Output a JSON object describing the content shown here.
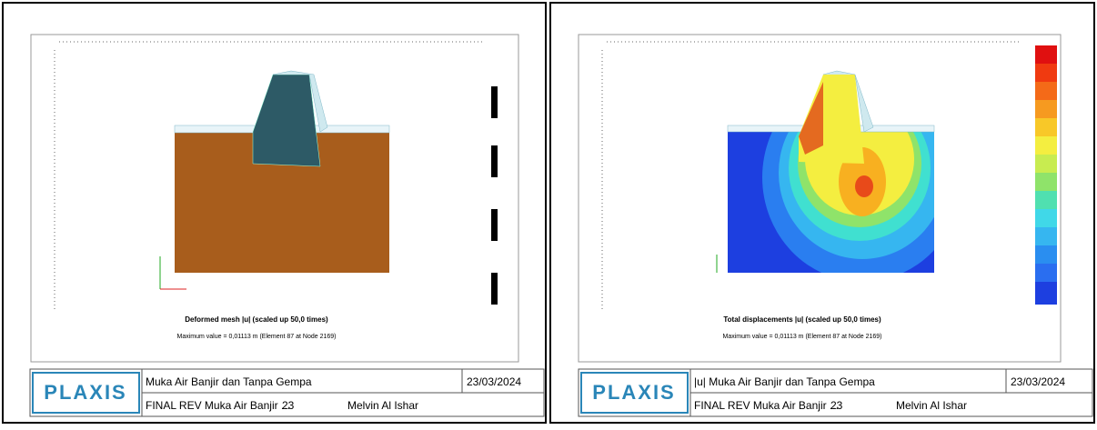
{
  "panels": [
    {
      "caption": "Deformed mesh |u| (scaled up 50,0 times)",
      "max_value": "Maximum value = 0,01113 m (Element 87 at Node 2169)",
      "title_block": {
        "logo": "PLAXIS",
        "project": "Muka Air Banjir dan Tanpa Gempa",
        "date": "23/03/2024",
        "file": "FINAL REV Muka Air Banjir ...",
        "step": "23",
        "user": "Melvin Al Ishar"
      }
    },
    {
      "caption": "Total displacements |u| (scaled up 50,0 times)",
      "max_value": "Maximum value = 0,01113 m (Element 87 at Node 2169)",
      "title_block": {
        "logo": "PLAXIS",
        "project": "|u| Muka Air Banjir dan Tanpa Gempa",
        "date": "23/03/2024",
        "file": "FINAL REV Muka Air Banjir ...",
        "step": "23",
        "user": "Melvin Al Ishar"
      }
    }
  ]
}
